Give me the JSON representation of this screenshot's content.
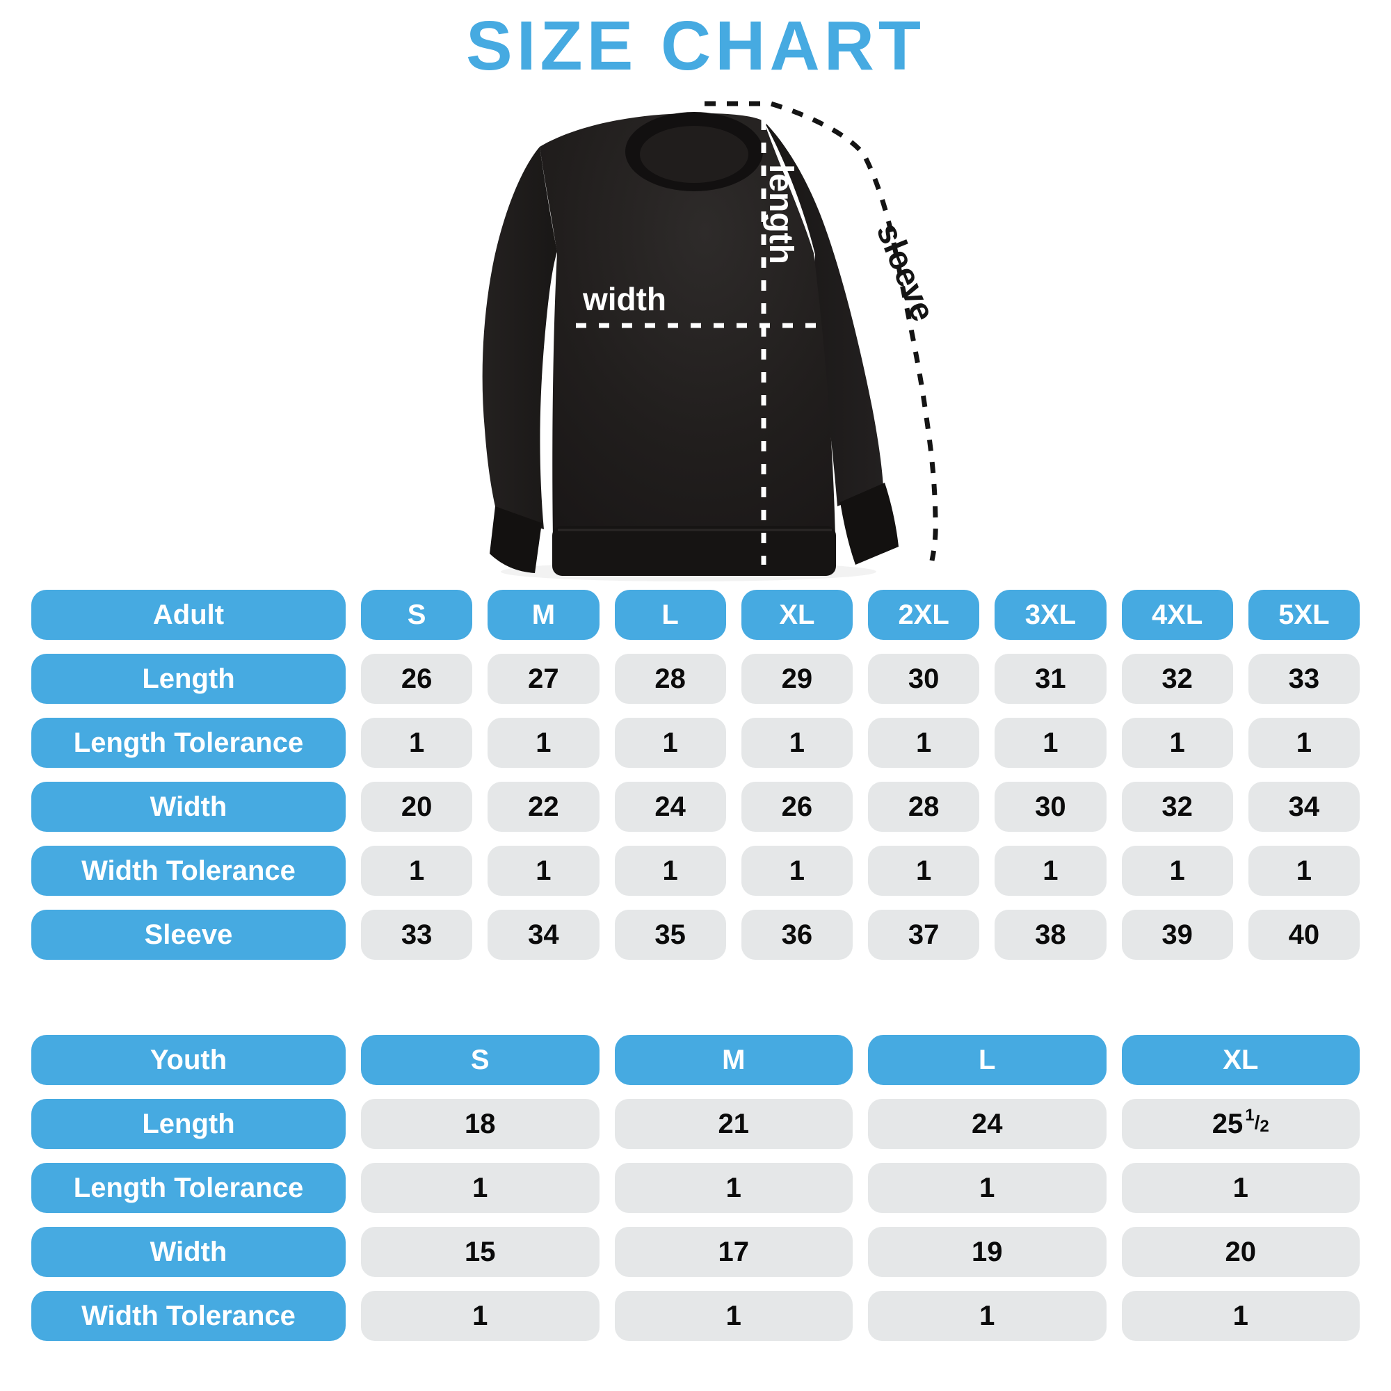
{
  "title": "SIZE CHART",
  "colors": {
    "accent_blue": "#46AAE1",
    "cell_gray": "#E5E7E8",
    "shirt_black": "#1d1a19",
    "measure_line_white": "#ffffff",
    "measure_line_black": "#141414"
  },
  "diagram": {
    "length_label": "length",
    "width_label": "width",
    "sleeve_label": "sleeve"
  },
  "adult_table": {
    "header_label": "Adult",
    "sizes": [
      "S",
      "M",
      "L",
      "XL",
      "2XL",
      "3XL",
      "4XL",
      "5XL"
    ],
    "rows": [
      {
        "label": "Length",
        "values": [
          "26",
          "27",
          "28",
          "29",
          "30",
          "31",
          "32",
          "33"
        ]
      },
      {
        "label": "Length Tolerance",
        "values": [
          "1",
          "1",
          "1",
          "1",
          "1",
          "1",
          "1",
          "1"
        ]
      },
      {
        "label": "Width",
        "values": [
          "20",
          "22",
          "24",
          "26",
          "28",
          "30",
          "32",
          "34"
        ]
      },
      {
        "label": "Width Tolerance",
        "values": [
          "1",
          "1",
          "1",
          "1",
          "1",
          "1",
          "1",
          "1"
        ]
      },
      {
        "label": "Sleeve",
        "values": [
          "33",
          "34",
          "35",
          "36",
          "37",
          "38",
          "39",
          "40"
        ]
      }
    ]
  },
  "youth_table": {
    "header_label": "Youth",
    "sizes": [
      "S",
      "M",
      "L",
      "XL"
    ],
    "rows": [
      {
        "label": "Length",
        "values": [
          "18",
          "21",
          "24",
          "25 1/2"
        ]
      },
      {
        "label": "Length Tolerance",
        "values": [
          "1",
          "1",
          "1",
          "1"
        ]
      },
      {
        "label": "Width",
        "values": [
          "15",
          "17",
          "19",
          "20"
        ]
      },
      {
        "label": "Width Tolerance",
        "values": [
          "1",
          "1",
          "1",
          "1"
        ]
      }
    ]
  }
}
